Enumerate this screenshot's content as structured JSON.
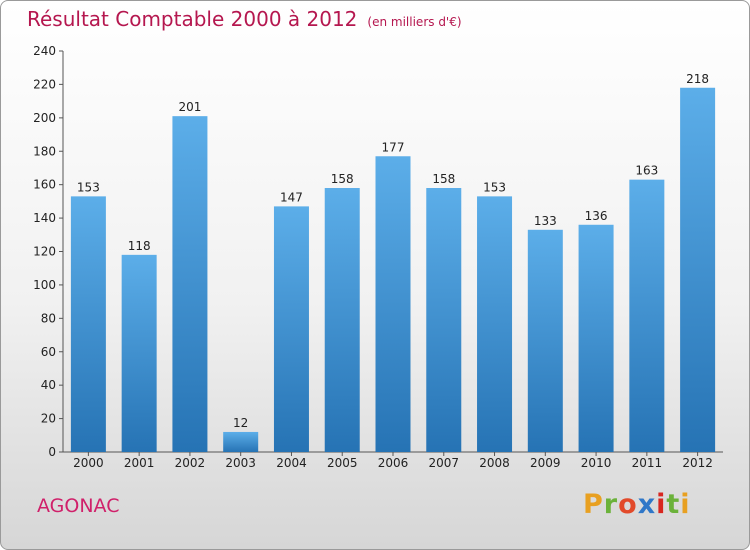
{
  "header": {
    "title": "Résultat Comptable 2000 à 2012",
    "unit": "(en milliers d'€)"
  },
  "footer": {
    "commune": "AGONAC",
    "logo": [
      "P",
      "r",
      "o",
      "x",
      "i",
      "t",
      "i"
    ],
    "logo_colors": [
      "#e8a021",
      "#6bb23a",
      "#e24a2a",
      "#2f77c8",
      "#d8261f",
      "#6bb23a",
      "#e8a021"
    ]
  },
  "colors": {
    "title": "#b5174f",
    "bar_top": "#5caee9",
    "bar_bottom": "#2673b4"
  },
  "chart_data": {
    "type": "bar",
    "title": "Résultat Comptable 2000 à 2012",
    "subtitle": "(en milliers d'€)",
    "xlabel": "",
    "ylabel": "",
    "categories": [
      "2000",
      "2001",
      "2002",
      "2003",
      "2004",
      "2005",
      "2006",
      "2007",
      "2008",
      "2009",
      "2010",
      "2011",
      "2012"
    ],
    "values": [
      153,
      118,
      201,
      12,
      147,
      158,
      177,
      158,
      153,
      133,
      136,
      163,
      218
    ],
    "ylim": [
      0,
      240
    ],
    "yticks": [
      0,
      20,
      40,
      60,
      80,
      100,
      120,
      140,
      160,
      180,
      200,
      220,
      240
    ],
    "grid": false,
    "legend": "none"
  }
}
